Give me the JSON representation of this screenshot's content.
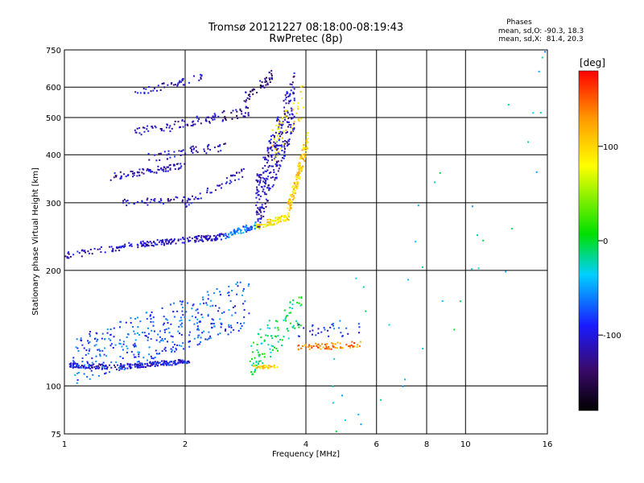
{
  "title": {
    "line1": "Tromsø 20121227 08:18:00-08:19:43",
    "line2": "RwPretec (8p)"
  },
  "stats": {
    "heading": "Phases",
    "line_o": "mean, sd,O: -90.3, 18.3",
    "line_x": "mean, sd,X:  81.4, 20.3"
  },
  "chart_data": {
    "type": "scatter",
    "xlabel": "Frequency [MHz]",
    "ylabel": "Stationary phase Virtual Height [km]",
    "xscale": "log",
    "yscale": "log",
    "xlim": [
      1,
      16
    ],
    "ylim": [
      75,
      750
    ],
    "xticks": [
      1,
      2,
      4,
      6,
      8,
      10,
      16
    ],
    "xtick_labels": [
      "1",
      "2",
      "4",
      "6",
      "8",
      "10",
      "16"
    ],
    "xgrid": [
      2,
      4,
      6,
      8,
      10
    ],
    "yticks": [
      75,
      100,
      200,
      300,
      400,
      500,
      600,
      750
    ],
    "ytick_labels": [
      "75",
      "100",
      "200",
      "300",
      "400",
      "500",
      "600",
      "750"
    ],
    "ygrid": [
      100,
      200,
      300,
      400,
      500,
      600
    ],
    "grid": true,
    "colorbar": {
      "label": "[deg]",
      "range": [
        -180,
        180
      ],
      "ticks": [
        100,
        0,
        -100
      ],
      "tick_labels": [
        "100",
        "0",
        "-100"
      ]
    },
    "series": [
      {
        "segments": [
          {
            "x0": 1.02,
            "x1": 1.35,
            "y0": 113,
            "y1": 112,
            "phase": -110,
            "n": 70,
            "jy": 0.015
          },
          {
            "x0": 1.35,
            "x1": 2.05,
            "y0": 112,
            "y1": 116,
            "phase": -100,
            "n": 160,
            "jy": 0.015
          },
          {
            "x0": 1.05,
            "x1": 2.9,
            "y0": 115,
            "y1": 165,
            "phase": -75,
            "n": 380,
            "jy": 0.15
          },
          {
            "x0": 2.9,
            "x1": 3.9,
            "y0": 118,
            "y1": 160,
            "phase": -10,
            "n": 110,
            "jy": 0.12
          },
          {
            "x0": 3.8,
            "x1": 5.5,
            "y0": 126,
            "y1": 128,
            "phase": 140,
            "n": 70,
            "jy": 0.02
          },
          {
            "x0": 3.8,
            "x1": 5.5,
            "y0": 140,
            "y1": 140,
            "phase": -90,
            "n": 30,
            "jy": 0.04
          },
          {
            "x0": 2.95,
            "x1": 3.4,
            "y0": 112,
            "y1": 112,
            "phase": 100,
            "n": 30,
            "jy": 0.01
          },
          {
            "x0": 1.0,
            "x1": 1.45,
            "y0": 218,
            "y1": 232,
            "phase": -110,
            "n": 50,
            "jy": 0.02
          },
          {
            "x0": 1.45,
            "x1": 2.5,
            "y0": 232,
            "y1": 245,
            "phase": -110,
            "n": 150,
            "jy": 0.018
          },
          {
            "x0": 2.5,
            "x1": 3.0,
            "y0": 245,
            "y1": 262,
            "phase": -60,
            "n": 70,
            "jy": 0.02
          },
          {
            "x0": 3.0,
            "x1": 3.6,
            "y0": 260,
            "y1": 275,
            "phase": 90,
            "n": 80,
            "jy": 0.02
          },
          {
            "x0": 3.6,
            "x1": 4.05,
            "y0": 280,
            "y1": 440,
            "phase": 100,
            "n": 140,
            "jy": 0.06
          },
          {
            "x0": 3.0,
            "x1": 3.75,
            "y0": 290,
            "y1": 560,
            "phase": -110,
            "n": 300,
            "jy": 0.18
          },
          {
            "x0": 3.3,
            "x1": 3.95,
            "y0": 420,
            "y1": 560,
            "phase": 95,
            "n": 50,
            "jy": 0.1
          },
          {
            "x0": 1.4,
            "x1": 2.0,
            "y0": 300,
            "y1": 305,
            "phase": -110,
            "n": 40,
            "jy": 0.02
          },
          {
            "x0": 1.3,
            "x1": 2.0,
            "y0": 350,
            "y1": 375,
            "phase": -110,
            "n": 80,
            "jy": 0.02
          },
          {
            "x0": 2.0,
            "x1": 2.8,
            "y0": 300,
            "y1": 360,
            "phase": -110,
            "n": 50,
            "jy": 0.03
          },
          {
            "x0": 1.6,
            "x1": 2.6,
            "y0": 395,
            "y1": 420,
            "phase": -110,
            "n": 50,
            "jy": 0.03
          },
          {
            "x0": 1.5,
            "x1": 2.9,
            "y0": 455,
            "y1": 520,
            "phase": -115,
            "n": 100,
            "jy": 0.03
          },
          {
            "x0": 1.5,
            "x1": 2.2,
            "y0": 580,
            "y1": 635,
            "phase": -110,
            "n": 45,
            "jy": 0.02
          },
          {
            "x0": 2.8,
            "x1": 3.3,
            "y0": 560,
            "y1": 640,
            "phase": -130,
            "n": 45,
            "jy": 0.04
          },
          {
            "x0": 4.5,
            "x1": 16,
            "y0": 86,
            "y1": 460,
            "phase": -30,
            "n": 45,
            "jy": 0.6
          }
        ]
      }
    ]
  }
}
